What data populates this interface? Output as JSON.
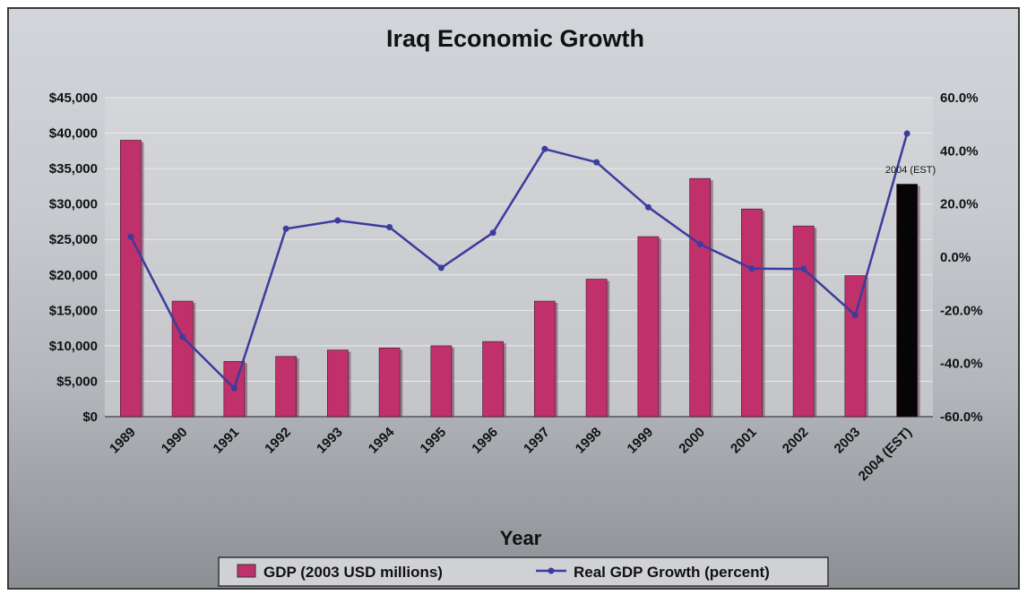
{
  "chart_data": {
    "type": "bar",
    "title": "Iraq Economic Growth",
    "xlabel": "Year",
    "ylabel": "",
    "y2label": "",
    "categories": [
      "1989",
      "1990",
      "1991",
      "1992",
      "1993",
      "1994",
      "1995",
      "1996",
      "1997",
      "1998",
      "1999",
      "2000",
      "2001",
      "2002",
      "2003",
      "2004 (EST)"
    ],
    "series": [
      {
        "name": "GDP (2003 USD millions)",
        "type": "bar",
        "axis": "left",
        "color": "#c0306b",
        "highlight_color": "#050505",
        "values": [
          39000,
          16300,
          7800,
          8500,
          9400,
          9700,
          10000,
          10600,
          16300,
          19400,
          25400,
          33600,
          29300,
          26900,
          19900,
          32800
        ]
      },
      {
        "name": "Real GDP Growth (percent)",
        "type": "line",
        "axis": "right",
        "color": "#3c3c9c",
        "values": [
          7.7,
          -30.0,
          -49.3,
          10.7,
          13.8,
          11.3,
          -4.0,
          9.2,
          40.7,
          35.7,
          18.8,
          4.9,
          -4.3,
          -4.4,
          -21.8,
          46.5
        ]
      }
    ],
    "ylim": [
      0,
      45000
    ],
    "yticks": [
      "$45,000",
      "$40,000",
      "$35,000",
      "$30,000",
      "$25,000",
      "$20,000",
      "$15,000",
      "$10,000",
      "$5,000",
      "$0"
    ],
    "y2lim": [
      -60,
      60
    ],
    "y2ticks": [
      "60.0%",
      "40.0%",
      "20.0%",
      "0.0%",
      "-20.0%",
      "-40.0%",
      "-60.0%"
    ],
    "annotation": "2004 (EST)",
    "grid": true,
    "legend_position": "bottom"
  }
}
